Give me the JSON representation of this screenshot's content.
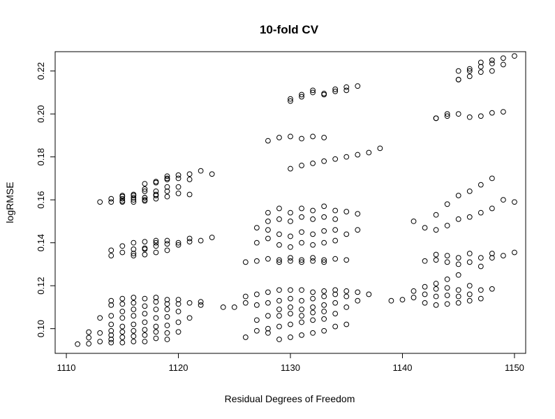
{
  "chart_data": {
    "type": "scatter",
    "title": "10-fold CV",
    "xlabel": "Residual Degrees of Freedom",
    "ylabel": "logRMSE",
    "xlim": [
      1109,
      1151
    ],
    "ylim": [
      0.0885,
      0.229
    ],
    "xticks": [
      1110,
      1120,
      1130,
      1140,
      1150
    ],
    "xtick_labels": [
      "1110",
      "1120",
      "1130",
      "1140",
      "1150"
    ],
    "yticks": [
      0.1,
      0.12,
      0.14,
      0.16,
      0.18,
      0.2,
      0.22
    ],
    "ytick_labels": [
      "0.10",
      "0.12",
      "0.14",
      "0.16",
      "0.18",
      "0.20",
      "0.22"
    ],
    "grid": false,
    "marker": "open-circle",
    "colors": {
      "marker": "#000000",
      "axis": "#000000",
      "background": "#ffffff"
    },
    "series": [
      {
        "x": [
          1111,
          1112,
          1112,
          1112,
          1113,
          1113,
          1113,
          1114,
          1114,
          1114,
          1114,
          1114,
          1114,
          1114,
          1114,
          1115,
          1115,
          1115,
          1115,
          1115,
          1115,
          1115,
          1115,
          1116,
          1116,
          1116,
          1116,
          1116,
          1116,
          1116,
          1116,
          1117,
          1117,
          1117,
          1117,
          1117,
          1117,
          1117,
          1118,
          1118,
          1118,
          1118,
          1118,
          1118,
          1118,
          1119,
          1119,
          1119,
          1119,
          1119,
          1119,
          1119,
          1120,
          1120,
          1120,
          1120,
          1120,
          1121,
          1121,
          1122,
          1122,
          1114,
          1114,
          1115,
          1115,
          1116,
          1116,
          1116,
          1117,
          1117,
          1117,
          1118,
          1118,
          1118,
          1119,
          1119,
          1120,
          1121,
          1114,
          1115,
          1116,
          1116,
          1117,
          1117,
          1118,
          1118,
          1119,
          1120,
          1121,
          1113,
          1114,
          1115,
          1115,
          1116,
          1116,
          1117,
          1117,
          1117,
          1118,
          1118,
          1119,
          1119,
          1119,
          1120,
          1120,
          1121,
          1115,
          1115,
          1116,
          1117,
          1117,
          1118,
          1118,
          1119,
          1119,
          1120,
          1121,
          1122,
          1123,
          1116,
          1117,
          1118,
          1119,
          1120,
          1121,
          1122,
          1123
        ],
        "y": [
          0.0928,
          0.093,
          0.0958,
          0.0984,
          0.094,
          0.098,
          0.105,
          0.0935,
          0.095,
          0.097,
          0.099,
          0.102,
          0.106,
          0.111,
          0.113,
          0.0935,
          0.096,
          0.0985,
          0.101,
          0.105,
          0.108,
          0.1115,
          0.114,
          0.094,
          0.0965,
          0.099,
          0.102,
          0.106,
          0.109,
          0.112,
          0.1145,
          0.094,
          0.097,
          0.0995,
          0.103,
          0.107,
          0.1105,
          0.114,
          0.0955,
          0.0985,
          0.101,
          0.105,
          0.109,
          0.1125,
          0.1145,
          0.095,
          0.098,
          0.1015,
          0.1055,
          0.109,
          0.1115,
          0.1135,
          0.0985,
          0.103,
          0.108,
          0.1115,
          0.1135,
          0.105,
          0.112,
          0.111,
          0.1125,
          0.134,
          0.1365,
          0.1355,
          0.1385,
          0.134,
          0.137,
          0.14,
          0.1345,
          0.1375,
          0.1405,
          0.1355,
          0.1385,
          0.141,
          0.1365,
          0.1395,
          0.14,
          0.1405,
          0.159,
          0.1605,
          0.159,
          0.162,
          0.1595,
          0.161,
          0.1605,
          0.1625,
          0.1615,
          0.163,
          0.1625,
          0.159,
          0.1605,
          0.1595,
          0.1615,
          0.16,
          0.1625,
          0.161,
          0.164,
          0.1675,
          0.162,
          0.1685,
          0.164,
          0.1695,
          0.171,
          0.166,
          0.1715,
          0.1695,
          0.159,
          0.162,
          0.161,
          0.16,
          0.165,
          0.164,
          0.168,
          0.166,
          0.17,
          0.17,
          0.172,
          0.1735,
          0.172,
          0.135,
          0.137,
          0.14,
          0.141,
          0.139,
          0.142,
          0.141,
          0.1425
        ]
      },
      {
        "x": [
          1124,
          1125,
          1126,
          1126,
          1126,
          1127,
          1127,
          1127,
          1127,
          1128,
          1128,
          1128,
          1128,
          1128,
          1129,
          1129,
          1129,
          1129,
          1129,
          1129,
          1130,
          1130,
          1130,
          1130,
          1130,
          1130,
          1131,
          1131,
          1131,
          1131,
          1131,
          1131,
          1132,
          1132,
          1132,
          1132,
          1132,
          1132,
          1133,
          1133,
          1133,
          1133,
          1133,
          1133,
          1134,
          1134,
          1134,
          1134,
          1134,
          1135,
          1135,
          1135,
          1135,
          1136,
          1136,
          1137,
          1126,
          1127,
          1128,
          1129,
          1129,
          1130,
          1130,
          1131,
          1131,
          1132,
          1132,
          1133,
          1133,
          1134,
          1135,
          1127,
          1128,
          1128,
          1129,
          1129,
          1130,
          1130,
          1131,
          1131,
          1132,
          1132,
          1133,
          1133,
          1134,
          1134,
          1135,
          1136,
          1127,
          1128,
          1128,
          1129,
          1129,
          1130,
          1130,
          1131,
          1131,
          1132,
          1132,
          1133,
          1133,
          1134,
          1134,
          1135,
          1136,
          1128,
          1129,
          1130,
          1131,
          1132,
          1133,
          1130,
          1131,
          1132,
          1133,
          1134,
          1135,
          1136,
          1137,
          1138,
          1130,
          1131,
          1132,
          1133,
          1134,
          1135,
          1136,
          1130,
          1131,
          1132,
          1133,
          1134,
          1135
        ],
        "y": [
          0.11,
          0.11,
          0.112,
          0.115,
          0.096,
          0.111,
          0.116,
          0.099,
          0.104,
          0.112,
          0.117,
          0.1,
          0.106,
          0.098,
          0.109,
          0.113,
          0.118,
          0.095,
          0.101,
          0.106,
          0.11,
          0.114,
          0.118,
          0.096,
          0.102,
          0.107,
          0.109,
          0.113,
          0.118,
          0.097,
          0.103,
          0.106,
          0.11,
          0.114,
          0.117,
          0.098,
          0.104,
          0.1075,
          0.111,
          0.115,
          0.1175,
          0.099,
          0.1045,
          0.108,
          0.112,
          0.116,
          0.118,
          0.101,
          0.107,
          0.11,
          0.115,
          0.1175,
          0.102,
          0.113,
          0.117,
          0.116,
          0.131,
          0.1315,
          0.1325,
          0.132,
          0.131,
          0.133,
          0.1315,
          0.132,
          0.131,
          0.133,
          0.1315,
          0.132,
          0.131,
          0.1325,
          0.132,
          0.14,
          0.142,
          0.146,
          0.139,
          0.144,
          0.138,
          0.143,
          0.14,
          0.145,
          0.139,
          0.144,
          0.14,
          0.1455,
          0.141,
          0.146,
          0.144,
          0.146,
          0.147,
          0.15,
          0.154,
          0.151,
          0.156,
          0.15,
          0.154,
          0.152,
          0.156,
          0.151,
          0.155,
          0.152,
          0.157,
          0.151,
          0.155,
          0.1545,
          0.1535,
          0.1875,
          0.189,
          0.1895,
          0.1885,
          0.1895,
          0.189,
          0.1745,
          0.176,
          0.177,
          0.178,
          0.179,
          0.18,
          0.181,
          0.182,
          0.184,
          0.207,
          0.209,
          0.211,
          0.209,
          0.2105,
          0.211,
          0.213,
          0.206,
          0.208,
          0.21,
          0.2095,
          0.2115,
          0.2125
        ]
      },
      {
        "x": [
          1139,
          1140,
          1141,
          1141,
          1142,
          1142,
          1142,
          1143,
          1143,
          1143,
          1143,
          1144,
          1144,
          1144,
          1144,
          1145,
          1145,
          1145,
          1145,
          1146,
          1146,
          1146,
          1147,
          1147,
          1148,
          1142,
          1143,
          1143,
          1144,
          1144,
          1145,
          1145,
          1146,
          1146,
          1147,
          1147,
          1148,
          1148,
          1149,
          1150,
          1141,
          1142,
          1143,
          1143,
          1144,
          1144,
          1145,
          1145,
          1146,
          1146,
          1147,
          1147,
          1148,
          1148,
          1149,
          1150,
          1143,
          1144,
          1145,
          1146,
          1147,
          1148,
          1149,
          1143,
          1144,
          1145,
          1146,
          1147,
          1148,
          1145,
          1146,
          1147,
          1148,
          1149,
          1150,
          1145,
          1146,
          1147,
          1148,
          1149
        ],
        "y": [
          0.113,
          0.1135,
          0.1145,
          0.1175,
          0.112,
          0.116,
          0.1195,
          0.111,
          0.115,
          0.1185,
          0.121,
          0.1115,
          0.1155,
          0.119,
          0.123,
          0.112,
          0.115,
          0.118,
          0.125,
          0.113,
          0.116,
          0.12,
          0.114,
          0.118,
          0.1185,
          0.1315,
          0.132,
          0.1345,
          0.131,
          0.134,
          0.13,
          0.133,
          0.131,
          0.135,
          0.129,
          0.133,
          0.133,
          0.135,
          0.134,
          0.1355,
          0.15,
          0.147,
          0.146,
          0.153,
          0.148,
          0.158,
          0.151,
          0.162,
          0.152,
          0.164,
          0.154,
          0.167,
          0.156,
          0.17,
          0.16,
          0.159,
          0.198,
          0.199,
          0.2,
          0.1985,
          0.199,
          0.2005,
          0.201,
          0.198,
          0.2,
          0.216,
          0.2175,
          0.2195,
          0.22,
          0.22,
          0.221,
          0.222,
          0.2235,
          0.223,
          0.227,
          0.216,
          0.22,
          0.224,
          0.225,
          0.226
        ]
      }
    ]
  }
}
